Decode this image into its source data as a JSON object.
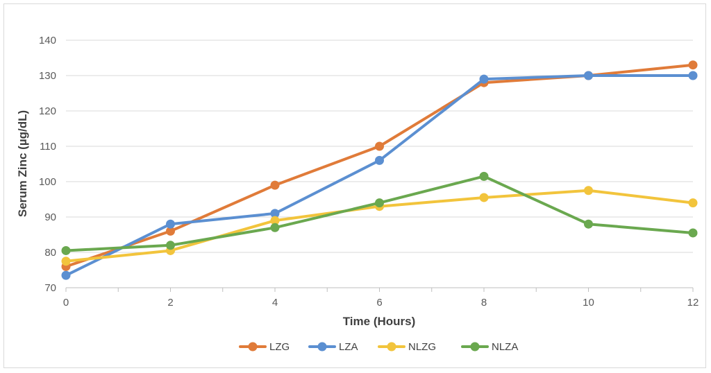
{
  "chart_data": {
    "type": "line",
    "title": "",
    "xlabel": "Time (Hours)",
    "ylabel": "Serum Zinc (µg/dL)",
    "x": [
      0,
      2,
      4,
      6,
      8,
      10,
      12
    ],
    "xlim": [
      0,
      12
    ],
    "ylim": [
      70,
      140
    ],
    "yticks": [
      70,
      80,
      90,
      100,
      110,
      120,
      130,
      140
    ],
    "grid": true,
    "legend_position": "bottom",
    "series": [
      {
        "name": "LZG",
        "color": "#e07b39",
        "values": [
          76,
          86,
          99,
          110,
          128,
          130,
          133
        ]
      },
      {
        "name": "LZA",
        "color": "#5b8fd1",
        "values": [
          73.5,
          88,
          91,
          106,
          129,
          130,
          130
        ]
      },
      {
        "name": "NLZG",
        "color": "#f2c43c",
        "values": [
          77.5,
          80.5,
          89,
          93,
          95.5,
          97.5,
          94
        ]
      },
      {
        "name": "NLZA",
        "color": "#6aa84f",
        "values": [
          80.5,
          82,
          87,
          94,
          101.5,
          88,
          85.5
        ]
      }
    ]
  }
}
